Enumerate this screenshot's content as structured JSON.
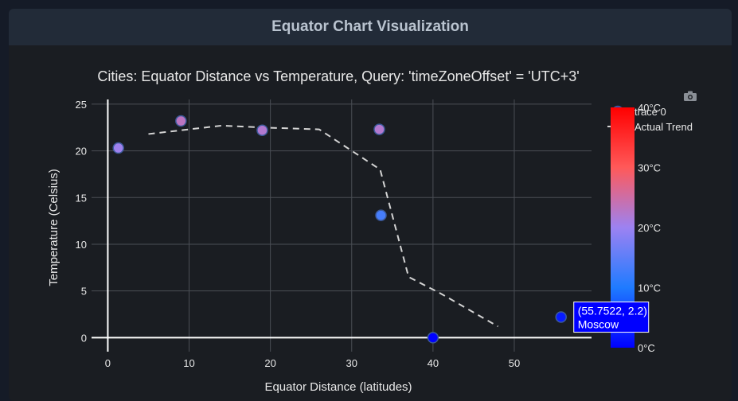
{
  "page": {
    "header_title": "Equator Chart Visualization"
  },
  "chart_data": {
    "type": "scatter",
    "title": "Cities: Equator Distance vs Temperature, Query: 'timeZoneOffset' = 'UTC+3'",
    "xlabel": "Equator Distance (latitudes)",
    "ylabel": "Temperature (Celsius)",
    "xlim": [
      -2,
      59.5
    ],
    "ylim": [
      -1.5,
      25.5
    ],
    "xticks": [
      0,
      10,
      20,
      30,
      40,
      50
    ],
    "yticks": [
      0,
      5,
      10,
      15,
      20,
      25
    ],
    "grid": true,
    "legend_position": "top-right",
    "series": [
      {
        "name": "trace 0",
        "mode": "markers",
        "x": [
          1.3,
          9.0,
          19.0,
          33.4,
          33.6,
          40.0,
          55.7522
        ],
        "y": [
          20.3,
          23.2,
          22.2,
          22.3,
          13.1,
          0.0,
          2.2
        ]
      },
      {
        "name": "Actual Trend",
        "mode": "lines",
        "dash": "dash",
        "color": "#d4d4d4",
        "x": [
          5,
          9,
          14,
          19,
          26,
          33.5,
          37,
          41,
          48
        ],
        "y": [
          21.8,
          22.2,
          22.7,
          22.5,
          22.3,
          18,
          6.5,
          4.7,
          1.2
        ]
      }
    ],
    "colorbar": {
      "range": [
        0,
        40
      ],
      "tick_values": [
        0,
        10,
        20,
        30,
        40
      ],
      "tick_labels": [
        "0°C",
        "10°C",
        "20°C",
        "30°C",
        "40°C"
      ],
      "colorscale": [
        "#0000ff",
        "#1f7bff",
        "#9c82f2",
        "#ff5959",
        "#ff0000"
      ]
    },
    "tooltip": {
      "x": 55.7522,
      "y": 2.2,
      "line1": "(55.7522, 2.2)",
      "line2": "Moscow"
    },
    "colors": {
      "background": "#1a1d22",
      "grid": "#4a4e55",
      "axis": "#ffffff",
      "text": "#e8e8e8",
      "tooltip_bg": "#0000ff"
    },
    "modebar_icon": "camera-icon"
  }
}
